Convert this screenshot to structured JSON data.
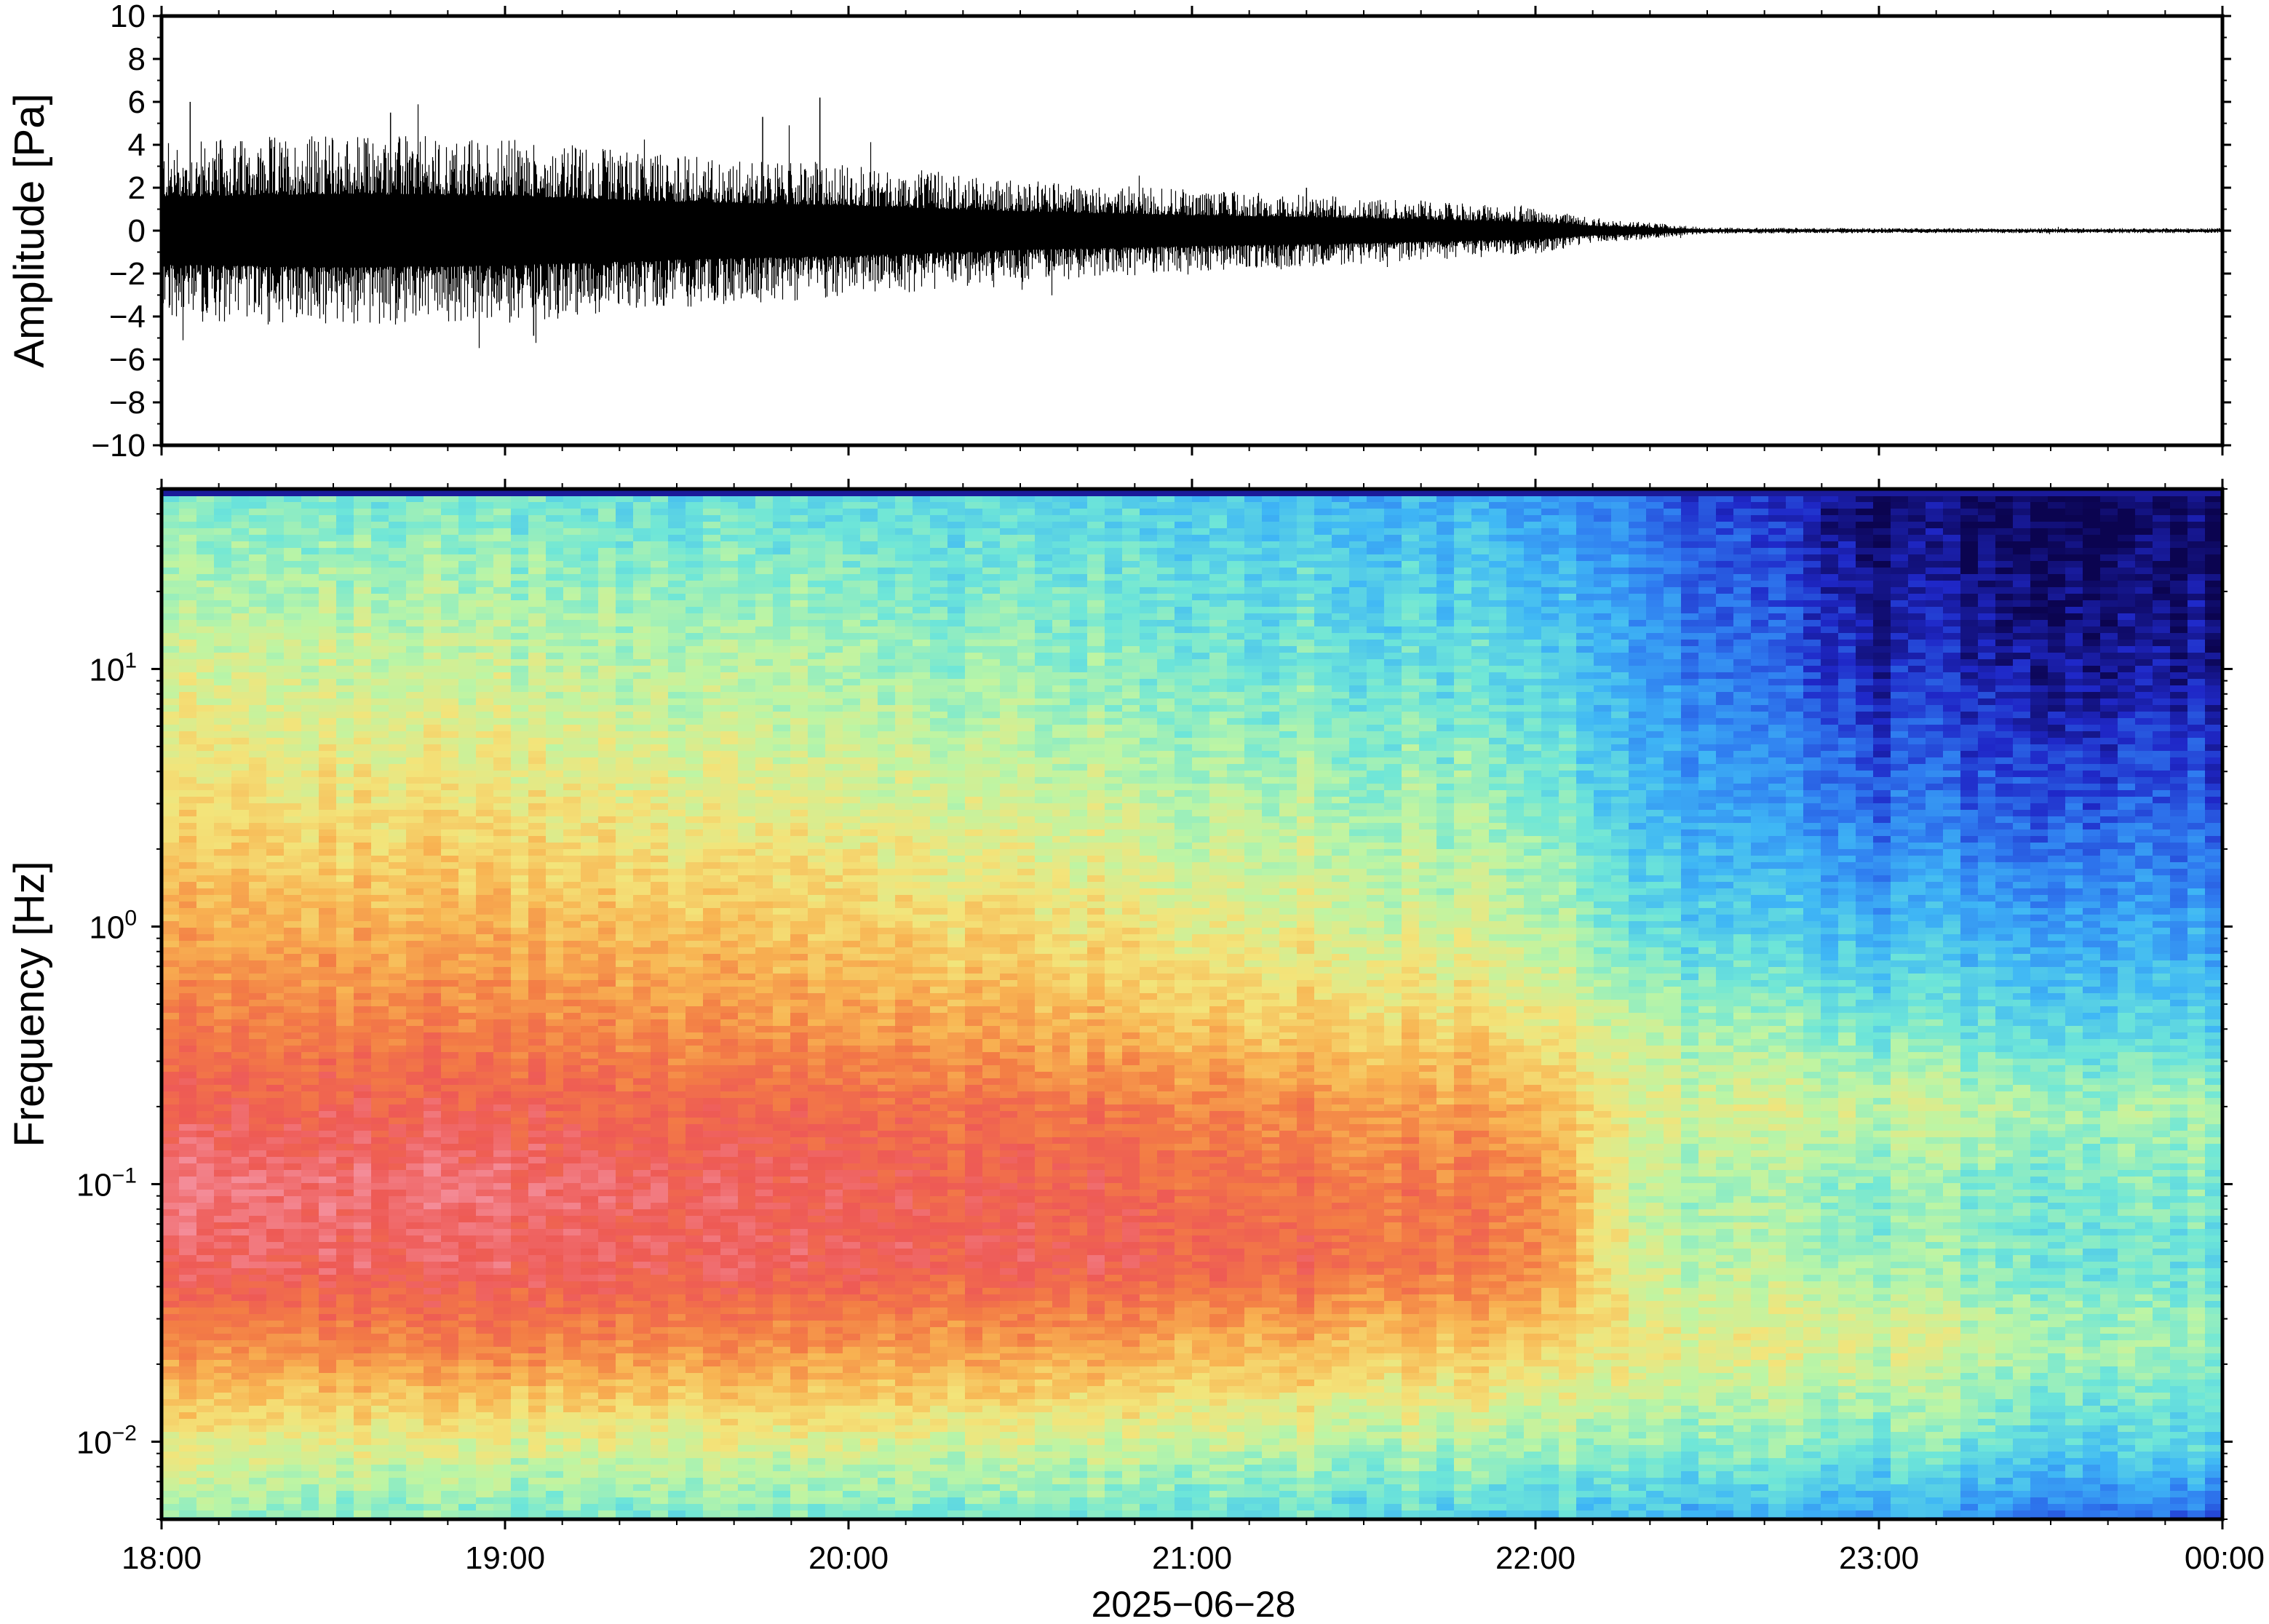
{
  "colors": {
    "axis": "#000000",
    "waveform": "#000000",
    "background": "#ffffff",
    "colormap": [
      "#0b0450",
      "#1f28c8",
      "#2f7cf0",
      "#3fb7f5",
      "#6ee6d8",
      "#bdf5a4",
      "#f3e47a",
      "#f8b452",
      "#f37d45",
      "#ee5a55",
      "#f48c98"
    ]
  },
  "chart_data": [
    {
      "type": "line",
      "title": "",
      "xlabel": "",
      "ylabel": "Amplitude [Pa]",
      "ylim": [
        -10,
        10
      ],
      "yticks": [
        {
          "v": 10,
          "label": "10"
        },
        {
          "v": 8,
          "label": "8"
        },
        {
          "v": 6,
          "label": "6"
        },
        {
          "v": 4,
          "label": "4"
        },
        {
          "v": 2,
          "label": "2"
        },
        {
          "v": 0,
          "label": "0"
        },
        {
          "v": -2,
          "label": "−2"
        },
        {
          "v": -4,
          "label": "−4"
        },
        {
          "v": -6,
          "label": "−6"
        },
        {
          "v": -8,
          "label": "−8"
        },
        {
          "v": -10,
          "label": "−10"
        }
      ],
      "xlim": [
        "2025-06-28 18:00",
        "2025-06-29 00:00"
      ],
      "grid": false,
      "series": [
        {
          "x": [
            "18:00",
            "18:30",
            "19:00",
            "19:30",
            "20:00",
            "20:30",
            "21:00",
            "21:30",
            "22:00",
            "22:10",
            "22:30",
            "23:00",
            "23:30",
            "00:00"
          ],
          "envelope_pa": [
            3.5,
            3.8,
            3.6,
            3.0,
            2.6,
            2.0,
            1.6,
            1.3,
            0.9,
            0.5,
            0.12,
            0.1,
            0.1,
            0.1
          ],
          "peaks": [
            {
              "x": "18:05",
              "y": 6.0
            },
            {
              "x": "18:40",
              "y": 5.5
            },
            {
              "x": "19:05",
              "y": -4.9
            },
            {
              "x": "19:45",
              "y": 5.3
            },
            {
              "x": "19:55",
              "y": 6.2
            },
            {
              "x": "21:20",
              "y": 2.0
            },
            {
              "x": "21:40",
              "y": 1.4
            }
          ]
        }
      ]
    },
    {
      "type": "heatmap",
      "title": "",
      "xlabel": "2025−06−28",
      "ylabel": "Frequency [Hz]",
      "yscale": "log",
      "ylim_hz": [
        0.005,
        50
      ],
      "yticks": [
        {
          "v": 10,
          "base": "10",
          "exp": "1"
        },
        {
          "v": 1,
          "base": "10",
          "exp": "0"
        },
        {
          "v": 0.1,
          "base": "10",
          "exp": "−1"
        },
        {
          "v": 0.01,
          "base": "10",
          "exp": "−2"
        }
      ],
      "xticks": [
        "18:00",
        "19:00",
        "20:00",
        "21:00",
        "22:00",
        "23:00",
        "00:00"
      ],
      "xlim": [
        "2025-06-28 18:00",
        "2025-06-29 00:00"
      ],
      "grid": false,
      "colorbar": false,
      "x_hours": [
        0,
        1,
        2,
        3,
        4,
        4.3,
        5,
        6
      ],
      "log10_freq": [
        -2.3,
        -2.0,
        -1.6,
        -1.3,
        -1.0,
        -0.7,
        -0.4,
        0.0,
        0.5,
        1.0,
        1.4,
        1.7
      ],
      "intensity": [
        [
          0.45,
          0.42,
          0.4,
          0.38,
          0.33,
          0.3,
          0.25,
          0.15
        ],
        [
          0.58,
          0.55,
          0.55,
          0.52,
          0.48,
          0.45,
          0.42,
          0.35
        ],
        [
          0.78,
          0.8,
          0.76,
          0.72,
          0.66,
          0.58,
          0.55,
          0.45
        ],
        [
          0.92,
          0.92,
          0.9,
          0.88,
          0.8,
          0.52,
          0.46,
          0.4
        ],
        [
          0.97,
          0.95,
          0.9,
          0.85,
          0.8,
          0.5,
          0.44,
          0.42
        ],
        [
          0.9,
          0.88,
          0.85,
          0.8,
          0.72,
          0.55,
          0.52,
          0.48
        ],
        [
          0.82,
          0.8,
          0.75,
          0.68,
          0.62,
          0.5,
          0.42,
          0.36
        ],
        [
          0.72,
          0.7,
          0.65,
          0.58,
          0.52,
          0.38,
          0.3,
          0.26
        ],
        [
          0.62,
          0.6,
          0.55,
          0.5,
          0.45,
          0.3,
          0.18,
          0.15
        ],
        [
          0.55,
          0.52,
          0.48,
          0.42,
          0.38,
          0.26,
          0.09,
          0.06
        ],
        [
          0.48,
          0.46,
          0.42,
          0.38,
          0.32,
          0.22,
          0.04,
          0.02
        ],
        [
          0.42,
          0.4,
          0.37,
          0.34,
          0.26,
          0.18,
          0.02,
          0.0
        ]
      ]
    }
  ]
}
